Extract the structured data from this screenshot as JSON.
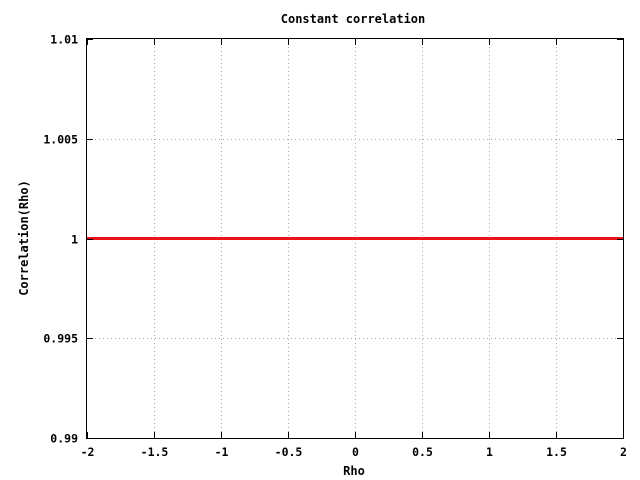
{
  "chart_data": {
    "type": "line",
    "title": "Constant correlation",
    "xlabel": "Rho",
    "ylabel": "Correlation(Rho)",
    "xlim": [
      -2,
      2
    ],
    "ylim": [
      0.99,
      1.01
    ],
    "x_ticks": [
      "-2",
      "-1.5",
      "-1",
      "-0.5",
      "0",
      "0.5",
      "1",
      "1.5",
      "2"
    ],
    "x_tick_values": [
      -2,
      -1.5,
      -1,
      -0.5,
      0,
      0.5,
      1,
      1.5,
      2
    ],
    "y_ticks": [
      "0.99",
      "0.995",
      "1",
      "1.005",
      "1.01"
    ],
    "y_tick_values": [
      0.99,
      0.995,
      1,
      1.005,
      1.01
    ],
    "grid": true,
    "series": [
      {
        "color": "#e8141c",
        "x": [
          -2,
          2
        ],
        "y": [
          1,
          1
        ]
      }
    ]
  }
}
